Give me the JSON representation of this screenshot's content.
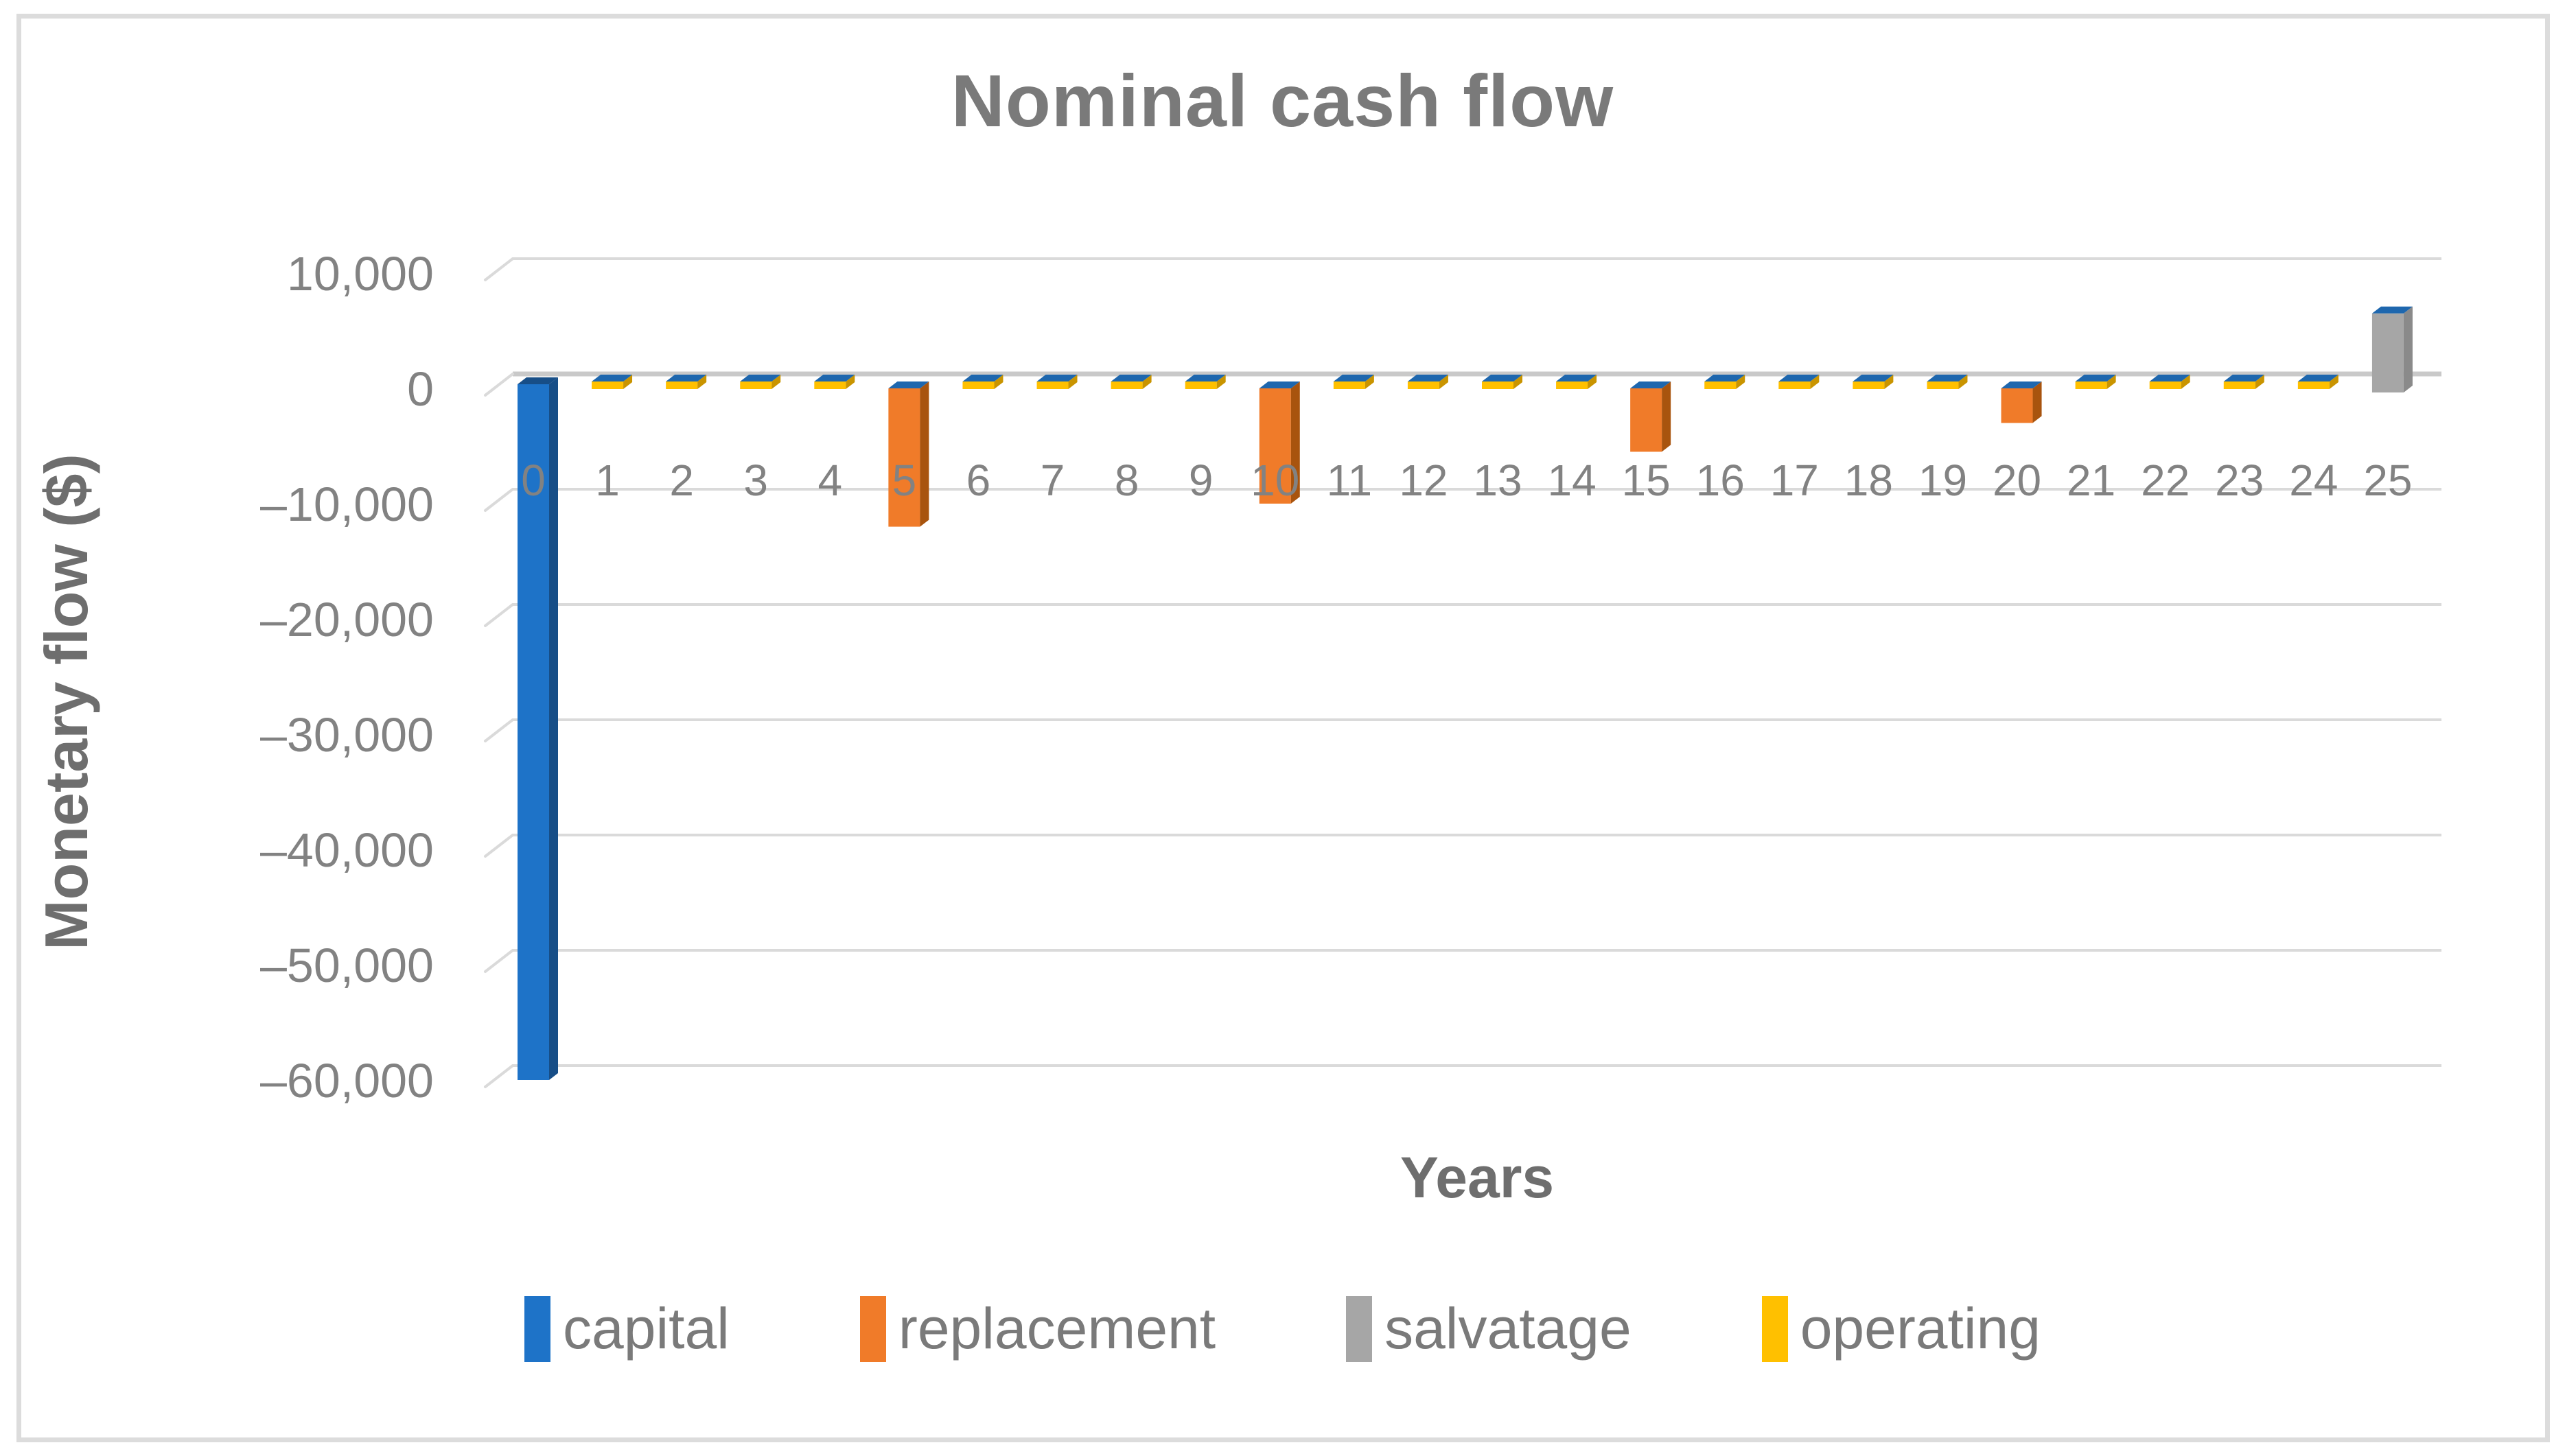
{
  "chart_title": "Nominal cash flow",
  "chart_data": {
    "type": "bar",
    "variant": "3d-stacked-column",
    "title": "Nominal cash flow",
    "xlabel": "Years",
    "ylabel": "Monetary flow ($)",
    "grid": true,
    "legend_position": "bottom",
    "ylim": [
      -60000,
      10000
    ],
    "categories": [
      "0",
      "1",
      "2",
      "3",
      "4",
      "5",
      "6",
      "7",
      "8",
      "9",
      "10",
      "11",
      "12",
      "13",
      "14",
      "15",
      "16",
      "17",
      "18",
      "19",
      "20",
      "21",
      "22",
      "23",
      "24",
      "25"
    ],
    "yticks": {
      "values": [
        10000,
        0,
        -10000,
        -20000,
        -30000,
        -40000,
        -50000,
        -60000
      ],
      "labels": [
        "10,000",
        "0",
        "–10,000",
        "–20,000",
        "–30,000",
        "–40,000",
        "–50,000",
        "–60,000"
      ]
    },
    "series": [
      {
        "name": "capital",
        "color": "#1E73C8",
        "side_color": "#174E87",
        "top_color": "#1E67AE",
        "values": [
          -60000,
          0,
          0,
          0,
          0,
          0,
          0,
          0,
          0,
          0,
          0,
          0,
          0,
          0,
          0,
          0,
          0,
          0,
          0,
          0,
          0,
          0,
          0,
          0,
          0,
          0
        ]
      },
      {
        "name": "replacement",
        "color": "#F07B29",
        "side_color": "#A8540E",
        "top_color": "#D96D1F",
        "values": [
          0,
          0,
          0,
          0,
          0,
          -12000,
          0,
          0,
          0,
          0,
          -10000,
          0,
          0,
          0,
          0,
          -5500,
          0,
          0,
          0,
          0,
          -3000,
          0,
          0,
          0,
          0,
          0
        ]
      },
      {
        "name": "salvatage",
        "color": "#A6A6A6",
        "side_color": "#8A8A8A",
        "top_color": "#999999",
        "values": [
          0,
          0,
          0,
          0,
          0,
          0,
          0,
          0,
          0,
          0,
          0,
          0,
          0,
          0,
          0,
          0,
          0,
          0,
          0,
          0,
          0,
          0,
          0,
          0,
          0,
          6500
        ]
      },
      {
        "name": "operating",
        "color": "#FFC000",
        "side_color": "#C99400",
        "top_color": "#E0A800",
        "values": [
          0,
          -500,
          -500,
          -500,
          -500,
          -500,
          -500,
          -500,
          -500,
          -500,
          -500,
          -500,
          -500,
          -500,
          -500,
          -500,
          -500,
          -500,
          -500,
          -500,
          -500,
          -500,
          -500,
          -500,
          -500,
          0
        ]
      }
    ],
    "colors": {
      "gridline": "#DADADA",
      "zero_line": "#C9C9C9",
      "tick_text": "#828282",
      "title_text": "#7A7A7A"
    }
  }
}
